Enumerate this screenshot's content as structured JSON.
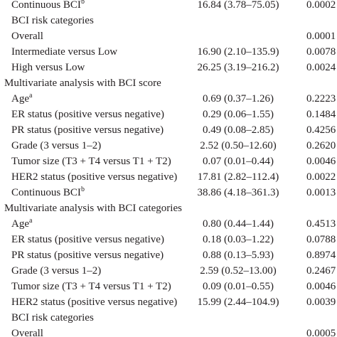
{
  "table": {
    "rows": [
      {
        "label": "Continuous BCI",
        "sup": "b",
        "hr": "16.84 (3.78–75.05)",
        "p": "0.0002"
      },
      {
        "label": "BCI risk categories"
      },
      {
        "label": "Overall",
        "p": "0.0001"
      },
      {
        "label": "Intermediate versus Low",
        "hr": "16.90 (2.10–135.9)",
        "p": "0.0078"
      },
      {
        "label": "High versus Low",
        "hr": "26.25 (3.19–216.2)",
        "p": "0.0024"
      },
      {
        "section": "Multivariate analysis with BCI score"
      },
      {
        "label": "Age",
        "sup": "a",
        "hr": "0.69 (0.37–1.26)",
        "p": "0.2223"
      },
      {
        "label": "ER status (positive versus negative)",
        "hr": "0.29 (0.06–1.55)",
        "p": "0.1484"
      },
      {
        "label": "PR status (positive versus negative)",
        "hr": "0.49 (0.08–2.85)",
        "p": "0.4256"
      },
      {
        "label": "Grade (3 versus 1–2)",
        "hr": "2.52 (0.50–12.60)",
        "p": "0.2620"
      },
      {
        "label": "Tumor size (T3 + T4 versus T1 + T2)",
        "hr": "0.07 (0.01–0.44)",
        "p": "0.0046"
      },
      {
        "label": "HER2 status (positive versus negative)",
        "hr": "17.81 (2.82–112.4)",
        "p": "0.0022"
      },
      {
        "label": "Continuous BCI",
        "sup": "b",
        "hr": "38.86 (4.18–361.3)",
        "p": "0.0013"
      },
      {
        "section": "Multivariate analysis with BCI categories"
      },
      {
        "label": "Age",
        "sup": "a",
        "hr": "0.80 (0.44–1.44)",
        "p": "0.4513"
      },
      {
        "label": "ER status (positive versus negative)",
        "hr": "0.18 (0.03–1.22)",
        "p": "0.0788"
      },
      {
        "label": "PR status (positive versus negative)",
        "hr": "0.88 (0.13–5.93)",
        "p": "0.8974"
      },
      {
        "label": "Grade (3 versus 1–2)",
        "hr": "2.59 (0.52–13.00)",
        "p": "0.2467"
      },
      {
        "label": "Tumor size (T3 + T4 versus T1 + T2)",
        "hr": "0.09 (0.01–0.55)",
        "p": "0.0046"
      },
      {
        "label": "HER2 status (positive versus negative)",
        "hr": "15.99 (2.44–104.9)",
        "p": "0.0039"
      },
      {
        "label": "BCI risk categories"
      },
      {
        "label": "Overall",
        "p": "0.0005"
      }
    ]
  }
}
